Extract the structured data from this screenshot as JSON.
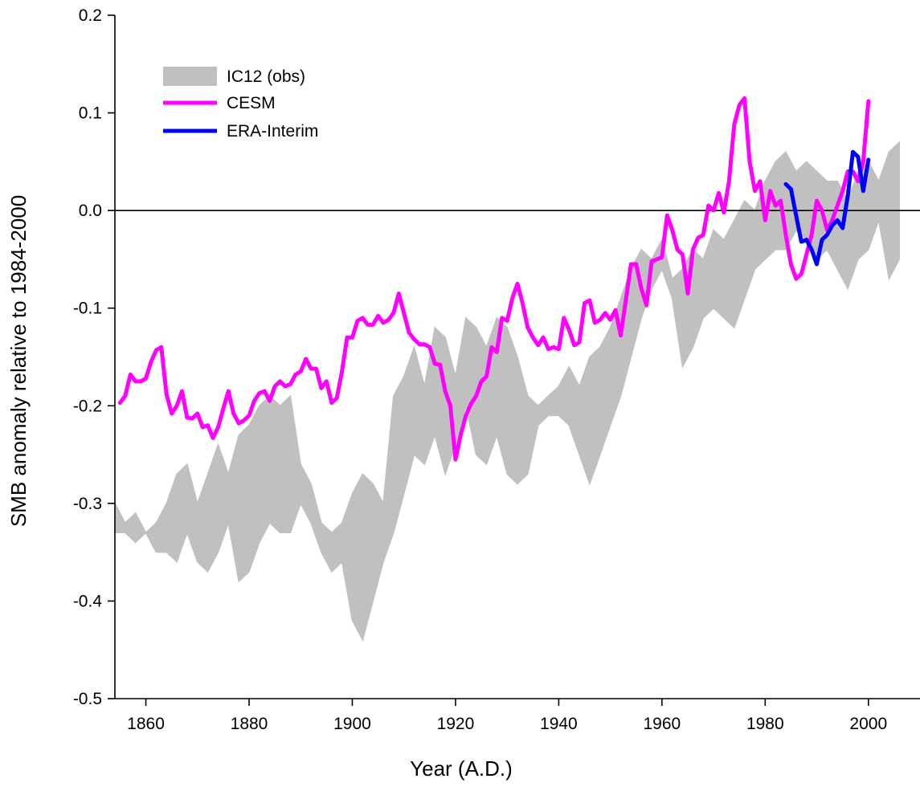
{
  "chart_data": {
    "type": "line",
    "xlabel": "Year (A.D.)",
    "ylabel": "SMB anomaly relative to 1984-2000",
    "xlim": [
      1854,
      2010
    ],
    "ylim": [
      -0.5,
      0.2
    ],
    "xticks": [
      1860,
      1880,
      1900,
      1920,
      1940,
      1960,
      1980,
      2000
    ],
    "yticks": [
      -0.5,
      -0.4,
      -0.3,
      -0.2,
      -0.1,
      0.0,
      0.1,
      0.2
    ],
    "ytick_labels": [
      "-0.5",
      "-0.4",
      "-0.3",
      "-0.2",
      "-0.1",
      "0.0",
      "0.1",
      "0.2"
    ],
    "zero_line": 0.0,
    "grid": false,
    "legend": {
      "position": "top-left",
      "entries": [
        {
          "name": "IC12 (obs)",
          "color": "#c0c0c0",
          "kind": "band"
        },
        {
          "name": "CESM",
          "color": "#ff00ff",
          "kind": "line"
        },
        {
          "name": "ERA-Interim",
          "color": "#0000ff",
          "kind": "line"
        }
      ]
    },
    "band": {
      "name": "IC12 (obs)",
      "color": "#c0c0c0",
      "x": [
        1854,
        1856,
        1858,
        1860,
        1862,
        1864,
        1866,
        1868,
        1870,
        1872,
        1874,
        1876,
        1878,
        1880,
        1882,
        1884,
        1886,
        1888,
        1890,
        1892,
        1894,
        1896,
        1898,
        1900,
        1902,
        1904,
        1906,
        1908,
        1910,
        1912,
        1914,
        1916,
        1918,
        1920,
        1922,
        1924,
        1926,
        1928,
        1930,
        1932,
        1934,
        1936,
        1938,
        1940,
        1942,
        1944,
        1946,
        1948,
        1950,
        1952,
        1954,
        1956,
        1958,
        1960,
        1962,
        1964,
        1966,
        1968,
        1970,
        1972,
        1974,
        1976,
        1978,
        1980,
        1982,
        1984,
        1986,
        1988,
        1990,
        1992,
        1994,
        1996,
        1998,
        2000,
        2002,
        2004,
        2006
      ],
      "upper": [
        -0.3,
        -0.32,
        -0.31,
        -0.33,
        -0.32,
        -0.3,
        -0.27,
        -0.26,
        -0.3,
        -0.27,
        -0.24,
        -0.27,
        -0.23,
        -0.22,
        -0.2,
        -0.19,
        -0.2,
        -0.19,
        -0.26,
        -0.28,
        -0.32,
        -0.33,
        -0.32,
        -0.29,
        -0.27,
        -0.28,
        -0.3,
        -0.19,
        -0.17,
        -0.14,
        -0.18,
        -0.12,
        -0.13,
        -0.17,
        -0.11,
        -0.12,
        -0.14,
        -0.11,
        -0.12,
        -0.15,
        -0.19,
        -0.2,
        -0.19,
        -0.18,
        -0.16,
        -0.18,
        -0.15,
        -0.14,
        -0.12,
        -0.09,
        -0.06,
        -0.04,
        -0.05,
        -0.03,
        -0.07,
        -0.06,
        -0.04,
        -0.05,
        -0.02,
        -0.03,
        -0.01,
        0.01,
        0.0,
        0.03,
        0.05,
        0.06,
        0.04,
        0.05,
        0.04,
        0.03,
        0.03,
        0.01,
        0.04,
        0.05,
        0.03,
        0.06,
        0.07
      ],
      "lower": [
        -0.33,
        -0.33,
        -0.34,
        -0.33,
        -0.35,
        -0.35,
        -0.36,
        -0.33,
        -0.36,
        -0.37,
        -0.35,
        -0.32,
        -0.38,
        -0.37,
        -0.34,
        -0.32,
        -0.33,
        -0.33,
        -0.3,
        -0.32,
        -0.35,
        -0.37,
        -0.36,
        -0.42,
        -0.44,
        -0.4,
        -0.36,
        -0.33,
        -0.29,
        -0.25,
        -0.26,
        -0.23,
        -0.27,
        -0.24,
        -0.2,
        -0.25,
        -0.26,
        -0.23,
        -0.27,
        -0.28,
        -0.27,
        -0.22,
        -0.21,
        -0.21,
        -0.22,
        -0.25,
        -0.28,
        -0.25,
        -0.22,
        -0.19,
        -0.15,
        -0.11,
        -0.08,
        -0.06,
        -0.09,
        -0.16,
        -0.14,
        -0.11,
        -0.1,
        -0.11,
        -0.12,
        -0.09,
        -0.06,
        -0.05,
        -0.04,
        -0.04,
        -0.02,
        -0.03,
        -0.05,
        -0.04,
        -0.06,
        -0.08,
        -0.05,
        -0.04,
        -0.01,
        -0.07,
        -0.05
      ]
    },
    "series": [
      {
        "name": "CESM",
        "color": "#ff00ff",
        "x": [
          1855,
          1856,
          1857,
          1858,
          1859,
          1860,
          1861,
          1862,
          1863,
          1864,
          1865,
          1866,
          1867,
          1868,
          1869,
          1870,
          1871,
          1872,
          1873,
          1874,
          1875,
          1876,
          1877,
          1878,
          1879,
          1880,
          1881,
          1882,
          1883,
          1884,
          1885,
          1886,
          1887,
          1888,
          1889,
          1890,
          1891,
          1892,
          1893,
          1894,
          1895,
          1896,
          1897,
          1898,
          1899,
          1900,
          1901,
          1902,
          1903,
          1904,
          1905,
          1906,
          1907,
          1908,
          1909,
          1910,
          1911,
          1912,
          1913,
          1914,
          1915,
          1916,
          1917,
          1918,
          1919,
          1920,
          1921,
          1922,
          1923,
          1924,
          1925,
          1926,
          1927,
          1928,
          1929,
          1930,
          1931,
          1932,
          1933,
          1934,
          1935,
          1936,
          1937,
          1938,
          1939,
          1940,
          1941,
          1942,
          1943,
          1944,
          1945,
          1946,
          1947,
          1948,
          1949,
          1950,
          1951,
          1952,
          1953,
          1954,
          1955,
          1956,
          1957,
          1958,
          1959,
          1960,
          1961,
          1962,
          1963,
          1964,
          1965,
          1966,
          1967,
          1968,
          1969,
          1970,
          1971,
          1972,
          1973,
          1974,
          1975,
          1976,
          1977,
          1978,
          1979,
          1980,
          1981,
          1982,
          1983,
          1984,
          1985,
          1986,
          1987,
          1988,
          1989,
          1990,
          1991,
          1992,
          1993,
          1994,
          1995,
          1996,
          1997,
          1998,
          1999,
          2000
        ],
        "values": [
          -0.197,
          -0.19,
          -0.168,
          -0.175,
          -0.175,
          -0.172,
          -0.155,
          -0.143,
          -0.14,
          -0.188,
          -0.208,
          -0.2,
          -0.185,
          -0.212,
          -0.213,
          -0.208,
          -0.222,
          -0.22,
          -0.233,
          -0.222,
          -0.203,
          -0.185,
          -0.208,
          -0.218,
          -0.215,
          -0.21,
          -0.195,
          -0.187,
          -0.185,
          -0.195,
          -0.18,
          -0.175,
          -0.18,
          -0.178,
          -0.168,
          -0.165,
          -0.152,
          -0.162,
          -0.162,
          -0.182,
          -0.175,
          -0.197,
          -0.192,
          -0.165,
          -0.13,
          -0.13,
          -0.113,
          -0.11,
          -0.117,
          -0.117,
          -0.108,
          -0.115,
          -0.112,
          -0.105,
          -0.085,
          -0.105,
          -0.125,
          -0.132,
          -0.137,
          -0.137,
          -0.14,
          -0.157,
          -0.158,
          -0.185,
          -0.2,
          -0.255,
          -0.23,
          -0.21,
          -0.198,
          -0.19,
          -0.175,
          -0.17,
          -0.14,
          -0.145,
          -0.11,
          -0.113,
          -0.09,
          -0.075,
          -0.095,
          -0.12,
          -0.13,
          -0.138,
          -0.13,
          -0.142,
          -0.14,
          -0.142,
          -0.11,
          -0.122,
          -0.138,
          -0.135,
          -0.095,
          -0.092,
          -0.115,
          -0.112,
          -0.105,
          -0.112,
          -0.102,
          -0.128,
          -0.092,
          -0.055,
          -0.055,
          -0.08,
          -0.097,
          -0.052,
          -0.05,
          -0.048,
          -0.005,
          -0.02,
          -0.04,
          -0.045,
          -0.085,
          -0.04,
          -0.028,
          -0.025,
          0.005,
          0.0,
          0.018,
          -0.002,
          0.03,
          0.088,
          0.108,
          0.115,
          0.05,
          0.02,
          0.03,
          -0.01,
          0.02,
          0.005,
          0.01,
          -0.025,
          -0.055,
          -0.07,
          -0.065,
          -0.045,
          -0.025,
          0.01,
          0.0,
          -0.02,
          -0.01,
          0.005,
          0.02,
          0.04,
          0.04,
          0.03,
          0.05,
          0.112
        ]
      },
      {
        "name": "ERA-Interim",
        "color": "#0000ff",
        "x": [
          1984,
          1985,
          1986,
          1987,
          1988,
          1989,
          1990,
          1991,
          1992,
          1993,
          1994,
          1995,
          1996,
          1997,
          1998,
          1999,
          2000
        ],
        "values": [
          0.027,
          0.022,
          -0.005,
          -0.032,
          -0.03,
          -0.04,
          -0.055,
          -0.03,
          -0.025,
          -0.015,
          -0.01,
          -0.018,
          0.015,
          0.06,
          0.055,
          0.02,
          0.052
        ]
      }
    ]
  }
}
